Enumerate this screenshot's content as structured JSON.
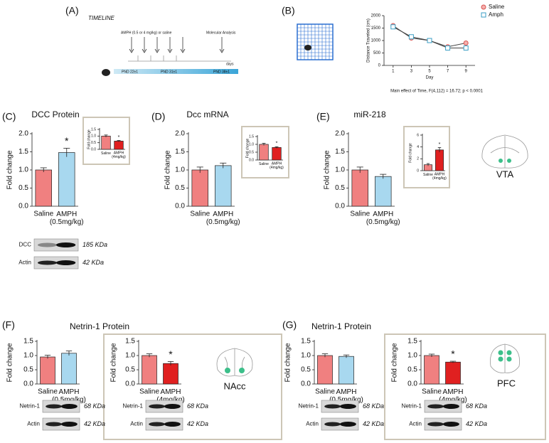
{
  "figure": {
    "panel_labels": [
      "(A)",
      "(B)",
      "(C)",
      "(D)",
      "(E)",
      "(F)",
      "(G)"
    ],
    "timeline": {
      "title": "TIMELINE",
      "treatment": "AMPH (0.5 or 4 mg/kg) or saline",
      "analysis": "Molecular Analysis",
      "axis_label": "days",
      "stages": [
        "PND 22±1",
        "PND 31±1",
        "PND 38±1"
      ]
    },
    "brain_labels": [
      "VTA",
      "NAcc",
      "PFC"
    ],
    "blots": [
      {
        "rows": [
          {
            "label": "DCC",
            "size": "185 KDa"
          },
          {
            "label": "Actin",
            "size": "42 KDa"
          }
        ]
      },
      {
        "rows": [
          {
            "label": "Netrin-1",
            "size": "68 KDa"
          },
          {
            "label": "Actin",
            "size": "42 KDa"
          }
        ]
      },
      {
        "rows": [
          {
            "label": "Netrin-1",
            "size": "68 KDa"
          },
          {
            "label": "Actin",
            "size": "42 KDa"
          }
        ]
      },
      {
        "rows": [
          {
            "label": "Netrin-1",
            "size": "68 KDa"
          },
          {
            "label": "Actin",
            "size": "42 KDa"
          }
        ]
      },
      {
        "rows": [
          {
            "label": "Netrin-1",
            "size": "68 KDa"
          },
          {
            "label": "Actin",
            "size": "42 KDa"
          }
        ]
      }
    ]
  },
  "chart_data": [
    {
      "type": "line",
      "x": [
        1,
        3,
        5,
        7,
        9
      ],
      "xlim": [
        0,
        10
      ],
      "xticks": [
        1,
        3,
        5,
        7,
        9
      ],
      "xlabel": "Day",
      "ylabel": "Distance Traveled (cm)",
      "ylim": [
        0,
        2000
      ],
      "yticks": [
        0,
        500,
        1000,
        1500,
        2000
      ],
      "note": "Main effect of Time, F(4,112) = 16.72; p < 0.0001",
      "legend": "top-right",
      "series": [
        {
          "name": "Saline",
          "color": "#d9534f",
          "values": [
            1600,
            1100,
            1000,
            750,
            900
          ]
        },
        {
          "name": "Amph",
          "color": "#3a9ec4",
          "values": [
            1550,
            1150,
            1000,
            700,
            700
          ]
        }
      ]
    },
    {
      "type": "bar",
      "title": "DCC Protein",
      "ylabel": "Fold change",
      "categories": [
        "Saline",
        "AMPH\n(0.5mg/kg)"
      ],
      "values": [
        1.0,
        1.48
      ],
      "errors": [
        0.06,
        0.12
      ],
      "colors": [
        "#f08080",
        "#a8d8ef"
      ],
      "annotation": "*",
      "ylim": [
        0,
        2
      ],
      "yticks": [
        {
          "value": 0,
          "label": "0.0"
        },
        0.5,
        {
          "value": 1,
          "label": "1.0"
        },
        1.5,
        {
          "value": 2,
          "label": "2.0"
        }
      ]
    },
    {
      "type": "bar",
      "ylabel": "Fold change",
      "categories": [
        "Saline",
        "AMPH\n(4mg/kg)"
      ],
      "values": [
        1.0,
        0.62
      ],
      "errors": [
        0.08,
        0.05
      ],
      "colors": [
        "#f08080",
        "#e02020"
      ],
      "annotation": "*",
      "ylim": [
        0,
        1.5
      ],
      "yticks": [
        {
          "value": 0,
          "label": "0.0"
        },
        0.5,
        {
          "value": 1,
          "label": "1.0"
        },
        1.5
      ]
    },
    {
      "type": "bar",
      "title": "Dcc mRNA",
      "ylabel": "Fold change",
      "categories": [
        "Saline",
        "AMPH\n(0.5mg/kg)"
      ],
      "values": [
        1.0,
        1.12
      ],
      "errors": [
        0.08,
        0.07
      ],
      "colors": [
        "#f08080",
        "#a8d8ef"
      ],
      "ylim": [
        0,
        2
      ],
      "yticks": [
        {
          "value": 0,
          "label": "0.0"
        },
        0.5,
        {
          "value": 1,
          "label": "1.0"
        },
        1.5,
        {
          "value": 2,
          "label": "2.0"
        }
      ]
    },
    {
      "type": "bar",
      "ylabel": "Fold change",
      "categories": [
        "Saline",
        "AMPH\n(4mg/kg)"
      ],
      "values": [
        1.0,
        0.8
      ],
      "errors": [
        0.07,
        0.05
      ],
      "colors": [
        "#f08080",
        "#e02020"
      ],
      "annotation": "*",
      "ylim": [
        0,
        1.5
      ],
      "yticks": [
        {
          "value": 0,
          "label": "0.0"
        },
        0.5,
        {
          "value": 1,
          "label": "1.0"
        },
        1.5
      ]
    },
    {
      "type": "bar",
      "title": "miR-218",
      "ylabel": "Fold change",
      "categories": [
        "Saline",
        "AMPH\n(0.5mg/kg)"
      ],
      "values": [
        1.0,
        0.82
      ],
      "errors": [
        0.08,
        0.06
      ],
      "colors": [
        "#f08080",
        "#a8d8ef"
      ],
      "ylim": [
        0,
        2
      ],
      "yticks": [
        {
          "value": 0,
          "label": "0.0"
        },
        0.5,
        {
          "value": 1,
          "label": "1.0"
        },
        1.5,
        {
          "value": 2,
          "label": "2.0"
        }
      ]
    },
    {
      "type": "bar",
      "ylabel": "Fold change",
      "categories": [
        "Saline",
        "AMPH\n(4mg/kg)"
      ],
      "values": [
        1.0,
        3.5
      ],
      "errors": [
        0.2,
        0.4
      ],
      "colors": [
        "#f08080",
        "#e02020"
      ],
      "annotation": "*",
      "ylim": [
        0,
        6
      ],
      "yticks": [
        0,
        2,
        4,
        6
      ]
    },
    {
      "type": "bar",
      "title": "Netrin-1 Protein",
      "ylabel": "Fold change",
      "categories": [
        "Saline",
        "AMPH\n(0.5mg/kg)"
      ],
      "values": [
        0.95,
        1.08
      ],
      "errors": [
        0.06,
        0.08
      ],
      "colors": [
        "#f08080",
        "#a8d8ef"
      ],
      "ylim": [
        0,
        1.5
      ],
      "yticks": [
        {
          "value": 0,
          "label": "0.0"
        },
        0.5,
        {
          "value": 1,
          "label": "1.0"
        },
        1.5
      ]
    },
    {
      "type": "bar",
      "ylabel": "Fold change",
      "categories": [
        "Saline",
        "AMPH\n(4mg/kg)"
      ],
      "values": [
        1.0,
        0.72
      ],
      "errors": [
        0.06,
        0.07
      ],
      "colors": [
        "#f08080",
        "#e02020"
      ],
      "annotation": "*",
      "ylim": [
        0,
        1.5
      ],
      "yticks": [
        {
          "value": 0,
          "label": "0.0"
        },
        0.5,
        {
          "value": 1,
          "label": "1.0"
        },
        1.5
      ]
    },
    {
      "type": "bar",
      "title": "Netrin-1 Protein",
      "ylabel": "Fold change",
      "categories": [
        "Saline",
        "AMPH\n(0.5mg/kg)"
      ],
      "values": [
        1.0,
        0.97
      ],
      "errors": [
        0.06,
        0.05
      ],
      "colors": [
        "#f08080",
        "#a8d8ef"
      ],
      "ylim": [
        0,
        1.5
      ],
      "yticks": [
        {
          "value": 0,
          "label": "0.0"
        },
        0.5,
        {
          "value": 1,
          "label": "1.0"
        },
        1.5
      ]
    },
    {
      "type": "bar",
      "ylabel": "Fold change",
      "categories": [
        "Saline",
        "AMPH\n(4mg/kg)"
      ],
      "values": [
        1.0,
        0.77
      ],
      "errors": [
        0.05,
        0.03
      ],
      "colors": [
        "#f08080",
        "#e02020"
      ],
      "annotation": "*",
      "ylim": [
        0,
        1.5
      ],
      "yticks": [
        {
          "value": 0,
          "label": "0.0"
        },
        0.5,
        {
          "value": 1,
          "label": "1.0"
        },
        1.5
      ]
    }
  ]
}
